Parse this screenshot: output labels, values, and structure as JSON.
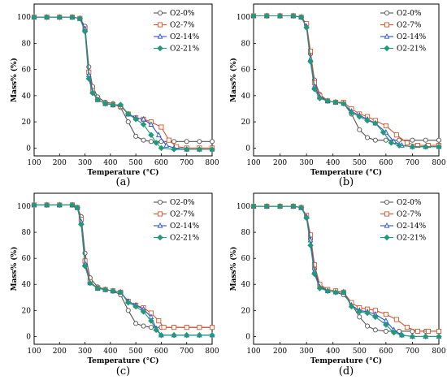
{
  "chart_data": [
    {
      "type": "line",
      "panel_label": "(a)",
      "xlabel": "Temperature (°C)",
      "ylabel": "Mass% (%)",
      "xlim": [
        100,
        800
      ],
      "ylim": [
        -6,
        110
      ],
      "xticks": [
        "100",
        "200",
        "300",
        "400",
        "500",
        "600",
        "700",
        "800"
      ],
      "yticks": [
        "0",
        "20",
        "40",
        "60",
        "80",
        "100"
      ],
      "legend_position": "top-right",
      "series": [
        {
          "name": "O2-0%",
          "color": "#555555",
          "x": [
            100,
            150,
            200,
            250,
            280,
            300,
            315,
            330,
            350,
            380,
            410,
            440,
            470,
            500,
            530,
            560,
            600,
            650,
            700,
            750,
            800
          ],
          "y": [
            100,
            100,
            100,
            100,
            99,
            93,
            62,
            47,
            39,
            35,
            34,
            31,
            20,
            9,
            6,
            5,
            5,
            5,
            5,
            5,
            5
          ]
        },
        {
          "name": "O2-7%",
          "color": "#d9542a",
          "x": [
            100,
            150,
            200,
            250,
            280,
            300,
            315,
            330,
            350,
            380,
            410,
            440,
            470,
            500,
            530,
            560,
            600,
            630,
            660,
            700,
            750,
            800
          ],
          "y": [
            100,
            100,
            100,
            100,
            99,
            91,
            58,
            44,
            37,
            34,
            33,
            32,
            26,
            23,
            22,
            20,
            16,
            6,
            1,
            0,
            0,
            0
          ]
        },
        {
          "name": "O2-14%",
          "color": "#2b50d9",
          "x": [
            100,
            150,
            200,
            250,
            280,
            300,
            315,
            330,
            350,
            380,
            410,
            440,
            470,
            500,
            530,
            560,
            590,
            620,
            650,
            700,
            750,
            800
          ],
          "y": [
            100,
            100,
            100,
            100,
            99,
            91,
            56,
            43,
            37,
            34,
            33,
            33,
            26,
            23,
            22,
            18,
            10,
            2,
            0,
            -1,
            -1,
            -1
          ]
        },
        {
          "name": "O2-21%",
          "color": "#1f9a7a",
          "x": [
            100,
            150,
            200,
            250,
            280,
            300,
            315,
            330,
            350,
            380,
            410,
            440,
            470,
            500,
            530,
            560,
            580,
            600,
            650,
            700,
            750,
            800
          ],
          "y": [
            100,
            100,
            100,
            100,
            99,
            89,
            53,
            42,
            37,
            34,
            33,
            33,
            26,
            22,
            18,
            10,
            4,
            0,
            -1,
            -1,
            -1,
            -1
          ]
        }
      ]
    },
    {
      "type": "line",
      "panel_label": "(b)",
      "xlabel": "Temperature (°C)",
      "ylabel": "Mass% (%)",
      "xlim": [
        100,
        800
      ],
      "ylim": [
        -6,
        110
      ],
      "xticks": [
        "100",
        "200",
        "300",
        "400",
        "500",
        "600",
        "700",
        "800"
      ],
      "yticks": [
        "0",
        "20",
        "40",
        "60",
        "80",
        "100"
      ],
      "legend_position": "top-right",
      "series": [
        {
          "name": "O2-0%",
          "color": "#555555",
          "x": [
            100,
            150,
            200,
            250,
            280,
            300,
            315,
            330,
            350,
            380,
            410,
            440,
            470,
            500,
            530,
            560,
            600,
            650,
            700,
            750,
            800
          ],
          "y": [
            101,
            101,
            101,
            101,
            100,
            94,
            72,
            52,
            41,
            36,
            35,
            34,
            26,
            14,
            8,
            6,
            6,
            6,
            6,
            6,
            6
          ]
        },
        {
          "name": "O2-7%",
          "color": "#d9542a",
          "x": [
            100,
            150,
            200,
            250,
            280,
            300,
            315,
            330,
            350,
            380,
            410,
            440,
            470,
            500,
            530,
            560,
            600,
            640,
            680,
            720,
            760,
            800
          ],
          "y": [
            101,
            101,
            101,
            101,
            100,
            95,
            74,
            50,
            40,
            36,
            35,
            35,
            30,
            26,
            24,
            21,
            17,
            10,
            4,
            2,
            2,
            2
          ]
        },
        {
          "name": "O2-14%",
          "color": "#2b50d9",
          "x": [
            100,
            150,
            200,
            250,
            280,
            300,
            315,
            330,
            350,
            380,
            410,
            440,
            470,
            500,
            530,
            560,
            600,
            630,
            660,
            700,
            750,
            800
          ],
          "y": [
            101,
            101,
            101,
            101,
            100,
            93,
            68,
            47,
            39,
            36,
            35,
            34,
            28,
            25,
            22,
            19,
            12,
            5,
            2,
            1,
            1,
            1
          ]
        },
        {
          "name": "O2-21%",
          "color": "#1f9a7a",
          "x": [
            100,
            150,
            200,
            250,
            280,
            300,
            315,
            330,
            350,
            380,
            410,
            440,
            470,
            500,
            530,
            560,
            590,
            620,
            650,
            700,
            750,
            800
          ],
          "y": [
            101,
            101,
            101,
            101,
            100,
            92,
            66,
            45,
            38,
            36,
            35,
            34,
            27,
            24,
            21,
            19,
            12,
            4,
            2,
            1,
            1,
            1
          ]
        }
      ]
    },
    {
      "type": "line",
      "panel_label": "(c)",
      "xlabel": "Temperature (°C)",
      "ylabel": "Mass% (%)",
      "xlim": [
        100,
        800
      ],
      "ylim": [
        -6,
        110
      ],
      "xticks": [
        "100",
        "200",
        "300",
        "400",
        "500",
        "600",
        "700",
        "800"
      ],
      "yticks": [
        "0",
        "20",
        "40",
        "60",
        "80",
        "100"
      ],
      "legend_position": "top-right",
      "series": [
        {
          "name": "O2-0%",
          "color": "#555555",
          "x": [
            100,
            150,
            200,
            250,
            270,
            285,
            300,
            320,
            350,
            380,
            410,
            440,
            470,
            500,
            530,
            560,
            600,
            650,
            700,
            750,
            800
          ],
          "y": [
            101,
            101,
            101,
            101,
            99,
            92,
            64,
            45,
            38,
            36,
            35,
            32,
            20,
            10,
            8,
            7,
            7,
            7,
            7,
            7,
            7
          ]
        },
        {
          "name": "O2-7%",
          "color": "#d9542a",
          "x": [
            100,
            150,
            200,
            250,
            270,
            285,
            300,
            320,
            350,
            380,
            410,
            440,
            470,
            500,
            530,
            560,
            590,
            610,
            650,
            700,
            750,
            800
          ],
          "y": [
            101,
            101,
            101,
            101,
            99,
            90,
            58,
            42,
            37,
            36,
            35,
            34,
            27,
            24,
            22,
            18,
            12,
            7,
            7,
            7,
            7,
            7
          ]
        },
        {
          "name": "O2-14%",
          "color": "#2b50d9",
          "x": [
            100,
            150,
            200,
            250,
            270,
            285,
            300,
            320,
            350,
            380,
            410,
            440,
            470,
            500,
            530,
            560,
            580,
            600,
            650,
            700,
            750,
            800
          ],
          "y": [
            101,
            101,
            101,
            101,
            99,
            88,
            56,
            41,
            37,
            36,
            35,
            34,
            27,
            24,
            21,
            15,
            6,
            1,
            1,
            1,
            1,
            1
          ]
        },
        {
          "name": "O2-21%",
          "color": "#1f9a7a",
          "x": [
            100,
            150,
            200,
            250,
            270,
            285,
            300,
            320,
            350,
            380,
            410,
            440,
            470,
            500,
            530,
            560,
            580,
            600,
            650,
            700,
            750,
            800
          ],
          "y": [
            101,
            101,
            101,
            101,
            99,
            86,
            54,
            41,
            37,
            36,
            35,
            34,
            26,
            23,
            19,
            12,
            5,
            1,
            1,
            1,
            1,
            1
          ]
        }
      ]
    },
    {
      "type": "line",
      "panel_label": "(d)",
      "xlabel": "Temperature (°C)",
      "ylabel": "Mass% (%)",
      "xlim": [
        100,
        800
      ],
      "ylim": [
        -6,
        110
      ],
      "xticks": [
        "100",
        "200",
        "300",
        "400",
        "500",
        "600",
        "700",
        "800"
      ],
      "yticks": [
        "0",
        "20",
        "40",
        "60",
        "80",
        "100"
      ],
      "legend_position": "top-right",
      "series": [
        {
          "name": "O2-0%",
          "color": "#555555",
          "x": [
            100,
            150,
            200,
            250,
            280,
            300,
            315,
            330,
            350,
            380,
            410,
            440,
            470,
            500,
            530,
            560,
            600,
            650,
            700,
            750,
            800
          ],
          "y": [
            100,
            100,
            100,
            100,
            99,
            92,
            75,
            52,
            39,
            35,
            34,
            32,
            25,
            15,
            8,
            5,
            4,
            4,
            4,
            4,
            4
          ]
        },
        {
          "name": "O2-7%",
          "color": "#d9542a",
          "x": [
            100,
            150,
            200,
            250,
            280,
            300,
            315,
            330,
            350,
            380,
            410,
            440,
            470,
            500,
            530,
            560,
            600,
            640,
            680,
            720,
            760,
            800
          ],
          "y": [
            100,
            100,
            100,
            100,
            99,
            93,
            78,
            55,
            40,
            36,
            35,
            34,
            26,
            22,
            21,
            20,
            17,
            13,
            7,
            4,
            4,
            4
          ]
        },
        {
          "name": "O2-14%",
          "color": "#2b50d9",
          "x": [
            100,
            150,
            200,
            250,
            280,
            300,
            315,
            330,
            350,
            380,
            410,
            440,
            470,
            500,
            530,
            560,
            600,
            630,
            660,
            700,
            750,
            800
          ],
          "y": [
            100,
            100,
            100,
            100,
            99,
            92,
            74,
            50,
            38,
            35,
            34,
            34,
            24,
            20,
            19,
            17,
            12,
            5,
            1,
            0,
            0,
            0
          ]
        },
        {
          "name": "O2-21%",
          "color": "#1f9a7a",
          "x": [
            100,
            150,
            200,
            250,
            280,
            300,
            315,
            330,
            350,
            380,
            410,
            440,
            470,
            500,
            530,
            560,
            600,
            630,
            660,
            700,
            750,
            800
          ],
          "y": [
            100,
            100,
            100,
            100,
            99,
            91,
            70,
            48,
            37,
            35,
            34,
            34,
            23,
            19,
            18,
            15,
            9,
            3,
            1,
            0,
            0,
            0
          ]
        }
      ]
    }
  ]
}
